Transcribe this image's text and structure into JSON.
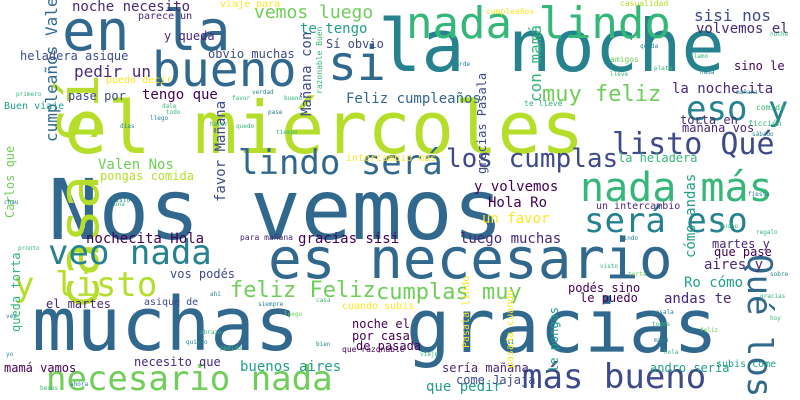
{
  "colors": {
    "background": "#ffffff",
    "palette": [
      "#440154",
      "#482878",
      "#3e4a89",
      "#31688e",
      "#26828e",
      "#1f9e89",
      "#35b779",
      "#6ece58",
      "#b5de2b",
      "#fde725"
    ]
  },
  "words": [
    {
      "text": "Nos vemos",
      "color": "#31688e"
    },
    {
      "text": "el miércoles",
      "color": "#b5de2b"
    },
    {
      "text": "muchas",
      "color": "#31688e"
    },
    {
      "text": "gracias",
      "color": "#31688e"
    },
    {
      "text": "la noche",
      "color": "#26828e"
    },
    {
      "text": "es necesario",
      "color": "#31688e"
    },
    {
      "text": "casa Sí",
      "color": "#b5de2b"
    },
    {
      "text": "en la",
      "color": "#31688e"
    },
    {
      "text": "nada lindo",
      "color": "#35b779"
    },
    {
      "text": "bueno",
      "color": "#31688e"
    },
    {
      "text": "si",
      "color": "#31688e"
    },
    {
      "text": "nada más",
      "color": "#35b779"
    },
    {
      "text": "necesario nada",
      "color": "#6ece58"
    },
    {
      "text": "más bueno",
      "color": "#3e4a89"
    },
    {
      "text": "veo nada",
      "color": "#26828e"
    },
    {
      "text": "lindo será",
      "color": "#31688e"
    },
    {
      "text": "y listo",
      "color": "#b5de2b"
    },
    {
      "text": "será eso",
      "color": "#26828e"
    },
    {
      "text": "eso y",
      "color": "#26828e"
    },
    {
      "text": "listo Qué",
      "color": "#3e4a89"
    },
    {
      "text": "Qué los",
      "color": "#31688e"
    },
    {
      "text": "los cumplas",
      "color": "#3e4a89"
    },
    {
      "text": "cumplas muy",
      "color": "#6ece58"
    },
    {
      "text": "feliz Feliz",
      "color": "#6ece58"
    },
    {
      "text": "muy feliz",
      "color": "#6ece58"
    },
    {
      "text": "vemos luego",
      "color": "#6ece58"
    },
    {
      "text": "sisi nos",
      "color": "#3e4a89"
    },
    {
      "text": "volvemos el",
      "color": "#482878"
    },
    {
      "text": "con mamá",
      "color": "#35b779"
    },
    {
      "text": "la nochecita",
      "color": "#482878"
    },
    {
      "text": "pedir un",
      "color": "#482878"
    },
    {
      "text": "tengo que",
      "color": "#440154"
    },
    {
      "text": "Feliz cumpleaños",
      "color": "#31688e"
    },
    {
      "text": "cumpleaños Valen",
      "color": "#31688e"
    },
    {
      "text": "Valen Nos",
      "color": "#6ece58"
    },
    {
      "text": "favor Mañana",
      "color": "#3e4a89"
    },
    {
      "text": "Mañana con",
      "color": "#3e4a89"
    },
    {
      "text": "nochecita Hola",
      "color": "#440154"
    },
    {
      "text": "gracias sisi",
      "color": "#440154"
    },
    {
      "text": "luego muchas",
      "color": "#482878"
    },
    {
      "text": "Hola Ro",
      "color": "#440154"
    },
    {
      "text": "un favor",
      "color": "#fde725"
    },
    {
      "text": "y volvemos",
      "color": "#440154"
    },
    {
      "text": "noche necesito",
      "color": "#482878"
    },
    {
      "text": "y queda",
      "color": "#482878"
    },
    {
      "text": "obvio muchas",
      "color": "#3e4a89"
    },
    {
      "text": "te tengo",
      "color": "#1f9e89"
    },
    {
      "text": "Sí obvio",
      "color": "#3e4a89"
    },
    {
      "text": "heladera asique",
      "color": "#3e4a89"
    },
    {
      "text": "pase por",
      "color": "#3e4a89"
    },
    {
      "text": "Buen viaje",
      "color": "#1f9e89"
    },
    {
      "text": "parece un",
      "color": "#482878"
    },
    {
      "text": "viaje para",
      "color": "#fde725"
    },
    {
      "text": "sino le",
      "color": "#440154"
    },
    {
      "text": "torta en",
      "color": "#482878"
    },
    {
      "text": "mañana vos",
      "color": "#482878"
    },
    {
      "text": "la heladera",
      "color": "#35b779"
    },
    {
      "text": "gracias Pasala",
      "color": "#3e4a89"
    },
    {
      "text": "cómo andas",
      "color": "#1f9e89"
    },
    {
      "text": "andas te",
      "color": "#482878"
    },
    {
      "text": "Ro cómo",
      "color": "#1f9e89"
    },
    {
      "text": "aires y",
      "color": "#482878"
    },
    {
      "text": "que pase",
      "color": "#440154"
    },
    {
      "text": "martes y",
      "color": "#482878"
    },
    {
      "text": "un intercambio",
      "color": "#482878"
    },
    {
      "text": "pongas comida",
      "color": "#b5de2b"
    },
    {
      "text": "vos podés",
      "color": "#3e4a89"
    },
    {
      "text": "podés sino",
      "color": "#440154"
    },
    {
      "text": "le puedo",
      "color": "#440154"
    },
    {
      "text": "le pongas",
      "color": "#1f9e89"
    },
    {
      "text": "noche el",
      "color": "#440154"
    },
    {
      "text": "por casa",
      "color": "#440154"
    },
    {
      "text": "de pasada",
      "color": "#440154"
    },
    {
      "text": "cuando subis",
      "color": "#fde725"
    },
    {
      "text": "asique de",
      "color": "#3e4a89"
    },
    {
      "text": "el martes",
      "color": "#482878"
    },
    {
      "text": "mamá vamos",
      "color": "#440154"
    },
    {
      "text": "necesito que",
      "color": "#482878"
    },
    {
      "text": "buenos aires",
      "color": "#1f9e89"
    },
    {
      "text": "que pedir",
      "color": "#1f9e89"
    },
    {
      "text": "sería mañana",
      "color": "#482878"
    },
    {
      "text": "andro sería",
      "color": "#1f9e89"
    },
    {
      "text": "come Jajaja",
      "color": "#3e4a89"
    },
    {
      "text": "subis come",
      "color": "#1f9e89"
    },
    {
      "text": "queda torta",
      "color": "#35b779"
    },
    {
      "text": "Carlos que",
      "color": "#6ece58"
    },
    {
      "text": "puedo decir",
      "color": "#fde725"
    },
    {
      "text": "razonable Buen",
      "color": "#35b779"
    },
    {
      "text": "pasada cuando",
      "color": "#fde725"
    },
    {
      "text": "Pasala lindo",
      "color": "#fde725"
    },
    {
      "text": "intercambio más",
      "color": "#fde725"
    },
    {
      "text": "para mañana",
      "color": "#482878"
    },
    {
      "text": "que razonable",
      "color": "#440154"
    },
    {
      "text": "casualidad",
      "color": "#b5de2b"
    },
    {
      "text": "comida",
      "color": "#35b779"
    },
    {
      "text": "te lleve",
      "color": "#35b779"
    },
    {
      "text": "ficción",
      "color": "#35b779"
    },
    {
      "text": "amigos",
      "color": "#6ece58"
    },
    {
      "text": "lleve",
      "color": "#35b779"
    },
    {
      "text": "cumpleaños",
      "color": "#fde725"
    },
    {
      "text": "listo",
      "color": "#26828e"
    },
    {
      "text": "bien",
      "color": "#26828e"
    },
    {
      "text": "ahí",
      "color": "#26828e"
    },
    {
      "text": "lindo",
      "color": "#26828e"
    },
    {
      "text": "mucho",
      "color": "#35b779"
    },
    {
      "text": "favor",
      "color": "#35b779"
    },
    {
      "text": "llego",
      "color": "#26828e"
    },
    {
      "text": "dale",
      "color": "#35b779"
    },
    {
      "text": "feliz",
      "color": "#6ece58"
    },
    {
      "text": "todo",
      "color": "#35b779"
    },
    {
      "text": "días",
      "color": "#26828e"
    },
    {
      "text": "hacer",
      "color": "#35b779"
    },
    {
      "text": "una",
      "color": "#35b779"
    },
    {
      "text": "vez",
      "color": "#26828e"
    },
    {
      "text": "yo",
      "color": "#26828e"
    },
    {
      "text": "tiempo",
      "color": "#35b779"
    },
    {
      "text": "quedo",
      "color": "#35b779"
    },
    {
      "text": "siempre",
      "color": "#26828e"
    },
    {
      "text": "luego",
      "color": "#6ece58"
    },
    {
      "text": "casa",
      "color": "#35b779"
    },
    {
      "text": "verdad",
      "color": "#26828e"
    },
    {
      "text": "bueno",
      "color": "#35b779"
    },
    {
      "text": "pase",
      "color": "#26828e"
    },
    {
      "text": "viaje",
      "color": "#35b779"
    },
    {
      "text": "mamá",
      "color": "#26828e"
    },
    {
      "text": "hola",
      "color": "#35b779"
    },
    {
      "text": "gracias",
      "color": "#35b779"
    },
    {
      "text": "pasala",
      "color": "#26828e"
    },
    {
      "text": "todos",
      "color": "#35b779"
    },
    {
      "text": "mañana",
      "color": "#26828e"
    },
    {
      "text": "noche",
      "color": "#35b779"
    },
    {
      "text": "nada",
      "color": "#26828e"
    },
    {
      "text": "plata",
      "color": "#35b779"
    },
    {
      "text": "queda",
      "color": "#26828e"
    },
    {
      "text": "llamo",
      "color": "#35b779"
    },
    {
      "text": "sábado",
      "color": "#26828e"
    },
    {
      "text": "torta",
      "color": "#6ece58"
    },
    {
      "text": "visto",
      "color": "#35b779"
    },
    {
      "text": "quiero",
      "color": "#26828e"
    },
    {
      "text": "pedido",
      "color": "#35b779"
    },
    {
      "text": "ahora",
      "color": "#26828e"
    },
    {
      "text": "besos",
      "color": "#35b779"
    },
    {
      "text": "chau",
      "color": "#26828e"
    },
    {
      "text": "pronto",
      "color": "#35b779"
    },
    {
      "text": "tarde",
      "color": "#26828e"
    },
    {
      "text": "abrazo",
      "color": "#35b779"
    },
    {
      "text": "fiesta",
      "color": "#26828e"
    },
    {
      "text": "regalo",
      "color": "#35b779"
    },
    {
      "text": "sobre",
      "color": "#26828e"
    },
    {
      "text": "hoy",
      "color": "#35b779"
    },
    {
      "text": "casi",
      "color": "#26828e"
    },
    {
      "text": "primero",
      "color": "#35b779"
    }
  ]
}
